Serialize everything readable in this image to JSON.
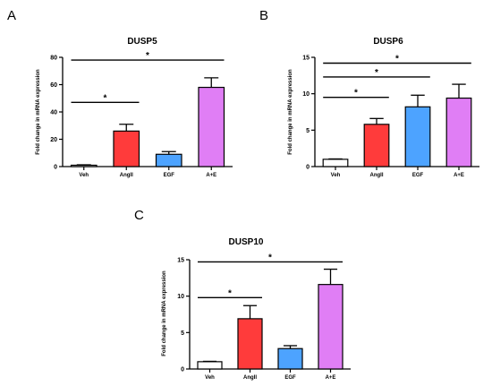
{
  "panels": [
    {
      "letter": "A",
      "chart_data": {
        "type": "bar",
        "title": "DUSP5",
        "xlabel": "",
        "ylabel": "Fold change in mRNA expression",
        "categories": [
          "Veh",
          "AngII",
          "EGF",
          "A+E"
        ],
        "values": [
          1,
          26,
          9,
          58
        ],
        "errors": [
          0.3,
          5,
          2,
          7
        ],
        "colors": [
          "#ffffff",
          "#ff3b3b",
          "#4da3ff",
          "#e07ef5"
        ],
        "ylim": [
          0,
          80
        ],
        "yticks": [
          0,
          20,
          40,
          60,
          80
        ],
        "significance": [
          {
            "from": 0,
            "to": 1,
            "y": 47,
            "label": "*"
          },
          {
            "from": 0,
            "to": 3,
            "y": 78,
            "label": "*"
          }
        ]
      }
    },
    {
      "letter": "B",
      "chart_data": {
        "type": "bar",
        "title": "DUSP6",
        "xlabel": "",
        "ylabel": "Fold change in mRNA expression",
        "categories": [
          "Veh",
          "AngII",
          "EGF",
          "A+E"
        ],
        "values": [
          1,
          5.8,
          8.2,
          9.4
        ],
        "errors": [
          0.05,
          0.8,
          1.6,
          1.9
        ],
        "colors": [
          "#ffffff",
          "#ff3b3b",
          "#4da3ff",
          "#e07ef5"
        ],
        "ylim": [
          0,
          15
        ],
        "yticks": [
          0,
          5,
          10,
          15
        ],
        "significance": [
          {
            "from": 0,
            "to": 1,
            "y": 9.5,
            "label": "*"
          },
          {
            "from": 0,
            "to": 2,
            "y": 12.3,
            "label": "*"
          },
          {
            "from": 0,
            "to": 3,
            "y": 14.2,
            "label": "*"
          }
        ]
      }
    },
    {
      "letter": "C",
      "chart_data": {
        "type": "bar",
        "title": "DUSP10",
        "xlabel": "",
        "ylabel": "Fold change in mRNA expression",
        "categories": [
          "Veh",
          "AngII",
          "EGF",
          "A+E"
        ],
        "values": [
          1,
          6.9,
          2.8,
          11.6
        ],
        "errors": [
          0.05,
          1.8,
          0.4,
          2.1
        ],
        "colors": [
          "#ffffff",
          "#ff3b3b",
          "#4da3ff",
          "#e07ef5"
        ],
        "ylim": [
          0,
          15
        ],
        "yticks": [
          0,
          5,
          10,
          15
        ],
        "significance": [
          {
            "from": 0,
            "to": 1,
            "y": 9.8,
            "label": "*"
          },
          {
            "from": 0,
            "to": 3,
            "y": 14.7,
            "label": "*"
          }
        ]
      }
    }
  ]
}
